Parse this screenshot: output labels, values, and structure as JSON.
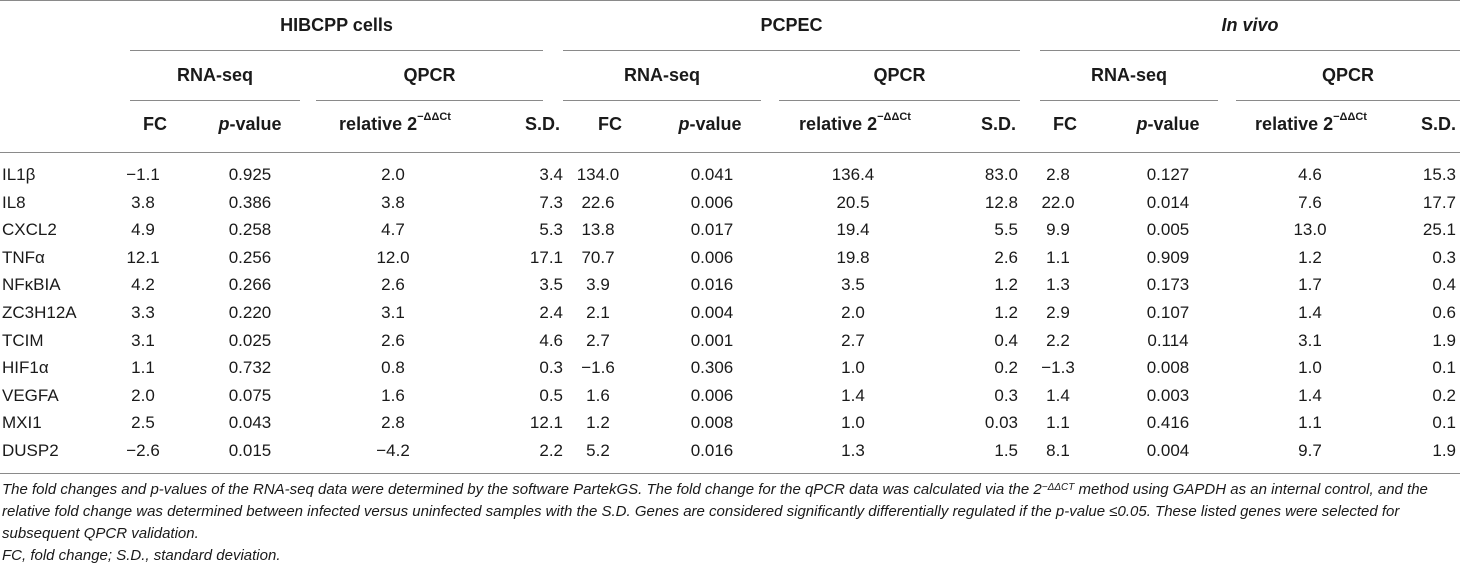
{
  "groups": [
    {
      "label": "HIBCPP cells",
      "italic": false
    },
    {
      "label": "PCPEC",
      "italic": false
    },
    {
      "label": "In vivo",
      "italic": true
    }
  ],
  "subgroups": [
    "RNA-seq",
    "QPCR"
  ],
  "columns": {
    "fc": "FC",
    "p_italic": "p",
    "p_suffix": "-value",
    "rel_prefix": "relative 2",
    "rel_sup": "−ΔΔCt",
    "sd": "S.D."
  },
  "rows": [
    {
      "gene": "IL1β",
      "values": [
        "−1.1",
        "0.925",
        "2.0",
        "3.4",
        "134.0",
        "0.041",
        "136.4",
        "83.0",
        "2.8",
        "0.127",
        "4.6",
        "15.3"
      ]
    },
    {
      "gene": "IL8",
      "values": [
        "3.8",
        "0.386",
        "3.8",
        "7.3",
        "22.6",
        "0.006",
        "20.5",
        "12.8",
        "22.0",
        "0.014",
        "7.6",
        "17.7"
      ]
    },
    {
      "gene": "CXCL2",
      "values": [
        "4.9",
        "0.258",
        "4.7",
        "5.3",
        "13.8",
        "0.017",
        "19.4",
        "5.5",
        "9.9",
        "0.005",
        "13.0",
        "25.1"
      ]
    },
    {
      "gene": "TNFα",
      "values": [
        "12.1",
        "0.256",
        "12.0",
        "17.1",
        "70.7",
        "0.006",
        "19.8",
        "2.6",
        "1.1",
        "0.909",
        "1.2",
        "0.3"
      ]
    },
    {
      "gene": "NFκBIA",
      "values": [
        "4.2",
        "0.266",
        "2.6",
        "3.5",
        "3.9",
        "0.016",
        "3.5",
        "1.2",
        "1.3",
        "0.173",
        "1.7",
        "0.4"
      ]
    },
    {
      "gene": "ZC3H12A",
      "values": [
        "3.3",
        "0.220",
        "3.1",
        "2.4",
        "2.1",
        "0.004",
        "2.0",
        "1.2",
        "2.9",
        "0.107",
        "1.4",
        "0.6"
      ]
    },
    {
      "gene": "TCIM",
      "values": [
        "3.1",
        "0.025",
        "2.6",
        "4.6",
        "2.7",
        "0.001",
        "2.7",
        "0.4",
        "2.2",
        "0.114",
        "3.1",
        "1.9"
      ]
    },
    {
      "gene": "HIF1α",
      "values": [
        "1.1",
        "0.732",
        "0.8",
        "0.3",
        "−1.6",
        "0.306",
        "1.0",
        "0.2",
        "−1.3",
        "0.008",
        "1.0",
        "0.1"
      ]
    },
    {
      "gene": "VEGFA",
      "values": [
        "2.0",
        "0.075",
        "1.6",
        "0.5",
        "1.6",
        "0.006",
        "1.4",
        "0.3",
        "1.4",
        "0.003",
        "1.4",
        "0.2"
      ]
    },
    {
      "gene": "MXI1",
      "values": [
        "2.5",
        "0.043",
        "2.8",
        "12.1",
        "1.2",
        "0.008",
        "1.0",
        "0.03",
        "1.1",
        "0.416",
        "1.1",
        "0.1"
      ]
    },
    {
      "gene": "DUSP2",
      "values": [
        "−2.6",
        "0.015",
        "−4.2",
        "2.2",
        "5.2",
        "0.016",
        "1.3",
        "1.5",
        "8.1",
        "0.004",
        "9.7",
        "1.9"
      ]
    }
  ],
  "footnote": {
    "part1": "The fold changes and p-values of the RNA-seq data were determined by the software PartekGS. The fold change for the qPCR data was calculated via the 2",
    "sup": "−ΔΔCT",
    "part2": " method using GAPDH as an internal control, and the relative fold change was determined between infected versus uninfected samples with the S.D. Genes are considered significantly differentially regulated if the p-value ≤0.05. These listed genes were selected for subsequent QPCR validation.",
    "abbrev": "FC, fold change; S.D., standard deviation."
  }
}
